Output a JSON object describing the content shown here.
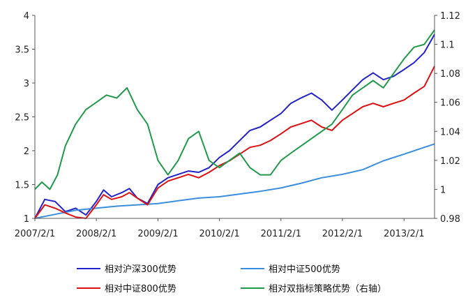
{
  "chart_data": {
    "type": "line",
    "x_ticks": [
      "2007/2/1",
      "2008/2/1",
      "2009/2/1",
      "2010/2/1",
      "2011/2/1",
      "2012/2/1",
      "2013/2/1"
    ],
    "left_axis": {
      "ylim": [
        1,
        4
      ],
      "ticks": [
        "1",
        "1.5",
        "2",
        "2.5",
        "3",
        "3.5",
        "4"
      ]
    },
    "right_axis": {
      "ylim": [
        0.98,
        1.12
      ],
      "ticks": [
        "0.98",
        "1",
        "1.02",
        "1.04",
        "1.06",
        "1.08",
        "1.1",
        "1.12"
      ]
    },
    "grid": false,
    "legend_position": "bottom",
    "series": [
      {
        "name": "相对沪深300优势",
        "axis": "left",
        "color": "#2222cc",
        "points": [
          [
            "2007/2/1",
            1.0
          ],
          [
            "2007/4/1",
            1.28
          ],
          [
            "2007/6/1",
            1.25
          ],
          [
            "2007/8/1",
            1.1
          ],
          [
            "2007/10/1",
            1.15
          ],
          [
            "2007/12/1",
            1.05
          ],
          [
            "2008/2/1",
            1.25
          ],
          [
            "2008/3/15",
            1.42
          ],
          [
            "2008/5/1",
            1.32
          ],
          [
            "2008/7/1",
            1.38
          ],
          [
            "2008/8/15",
            1.44
          ],
          [
            "2008/10/1",
            1.3
          ],
          [
            "2008/12/1",
            1.22
          ],
          [
            "2009/2/1",
            1.5
          ],
          [
            "2009/4/1",
            1.6
          ],
          [
            "2009/6/1",
            1.65
          ],
          [
            "2009/8/1",
            1.7
          ],
          [
            "2009/10/1",
            1.68
          ],
          [
            "2009/12/1",
            1.75
          ],
          [
            "2010/2/1",
            1.9
          ],
          [
            "2010/4/1",
            2.0
          ],
          [
            "2010/6/1",
            2.15
          ],
          [
            "2010/8/1",
            2.3
          ],
          [
            "2010/10/1",
            2.35
          ],
          [
            "2010/12/1",
            2.45
          ],
          [
            "2011/2/1",
            2.55
          ],
          [
            "2011/4/1",
            2.7
          ],
          [
            "2011/6/1",
            2.78
          ],
          [
            "2011/8/1",
            2.85
          ],
          [
            "2011/10/1",
            2.75
          ],
          [
            "2011/12/1",
            2.6
          ],
          [
            "2012/2/1",
            2.75
          ],
          [
            "2012/4/1",
            2.9
          ],
          [
            "2012/6/1",
            3.05
          ],
          [
            "2012/8/1",
            3.15
          ],
          [
            "2012/10/1",
            3.05
          ],
          [
            "2012/12/1",
            3.1
          ],
          [
            "2013/2/1",
            3.2
          ],
          [
            "2013/4/1",
            3.3
          ],
          [
            "2013/6/1",
            3.45
          ],
          [
            "2013/8/1",
            3.72
          ]
        ]
      },
      {
        "name": "相对中证500优势",
        "axis": "left",
        "color": "#3a8ee0",
        "points": [
          [
            "2007/2/1",
            1.0
          ],
          [
            "2007/6/1",
            1.06
          ],
          [
            "2007/10/1",
            1.12
          ],
          [
            "2008/2/1",
            1.15
          ],
          [
            "2008/6/1",
            1.18
          ],
          [
            "2008/10/1",
            1.2
          ],
          [
            "2009/2/1",
            1.22
          ],
          [
            "2009/6/1",
            1.26
          ],
          [
            "2009/10/1",
            1.3
          ],
          [
            "2010/2/1",
            1.32
          ],
          [
            "2010/6/1",
            1.36
          ],
          [
            "2010/10/1",
            1.4
          ],
          [
            "2011/2/1",
            1.45
          ],
          [
            "2011/6/1",
            1.52
          ],
          [
            "2011/10/1",
            1.6
          ],
          [
            "2012/2/1",
            1.65
          ],
          [
            "2012/6/1",
            1.72
          ],
          [
            "2012/10/1",
            1.85
          ],
          [
            "2013/2/1",
            1.95
          ],
          [
            "2013/6/1",
            2.05
          ],
          [
            "2013/8/1",
            2.1
          ]
        ]
      },
      {
        "name": "相对中证800优势",
        "axis": "left",
        "color": "#dd1111",
        "points": [
          [
            "2007/2/1",
            1.0
          ],
          [
            "2007/4/1",
            1.2
          ],
          [
            "2007/6/1",
            1.15
          ],
          [
            "2007/8/1",
            1.08
          ],
          [
            "2007/10/1",
            1.02
          ],
          [
            "2007/12/1",
            1.0
          ],
          [
            "2008/2/1",
            1.2
          ],
          [
            "2008/3/15",
            1.35
          ],
          [
            "2008/5/1",
            1.28
          ],
          [
            "2008/7/1",
            1.32
          ],
          [
            "2008/8/15",
            1.38
          ],
          [
            "2008/10/1",
            1.3
          ],
          [
            "2008/12/1",
            1.2
          ],
          [
            "2009/2/1",
            1.45
          ],
          [
            "2009/4/1",
            1.55
          ],
          [
            "2009/6/1",
            1.6
          ],
          [
            "2009/8/1",
            1.65
          ],
          [
            "2009/10/1",
            1.6
          ],
          [
            "2009/12/1",
            1.68
          ],
          [
            "2010/2/1",
            1.78
          ],
          [
            "2010/4/1",
            1.85
          ],
          [
            "2010/6/1",
            1.95
          ],
          [
            "2010/8/1",
            2.05
          ],
          [
            "2010/10/1",
            2.08
          ],
          [
            "2010/12/1",
            2.15
          ],
          [
            "2011/2/1",
            2.25
          ],
          [
            "2011/4/1",
            2.35
          ],
          [
            "2011/6/1",
            2.4
          ],
          [
            "2011/8/1",
            2.45
          ],
          [
            "2011/10/1",
            2.35
          ],
          [
            "2011/12/1",
            2.3
          ],
          [
            "2012/2/1",
            2.45
          ],
          [
            "2012/4/1",
            2.55
          ],
          [
            "2012/6/1",
            2.65
          ],
          [
            "2012/8/1",
            2.7
          ],
          [
            "2012/10/1",
            2.65
          ],
          [
            "2012/12/1",
            2.7
          ],
          [
            "2013/2/1",
            2.75
          ],
          [
            "2013/4/1",
            2.85
          ],
          [
            "2013/6/1",
            2.95
          ],
          [
            "2013/8/1",
            3.25
          ]
        ]
      },
      {
        "name": "相对双指标策略优势（右轴）",
        "axis": "right",
        "color": "#1f9a4a",
        "points": [
          [
            "2007/2/1",
            1.0
          ],
          [
            "2007/3/15",
            1.005
          ],
          [
            "2007/5/1",
            1.0
          ],
          [
            "2007/6/15",
            1.01
          ],
          [
            "2007/8/1",
            1.03
          ],
          [
            "2007/10/1",
            1.045
          ],
          [
            "2007/12/1",
            1.055
          ],
          [
            "2008/2/1",
            1.06
          ],
          [
            "2008/4/1",
            1.065
          ],
          [
            "2008/6/1",
            1.063
          ],
          [
            "2008/8/1",
            1.07
          ],
          [
            "2008/10/1",
            1.055
          ],
          [
            "2008/12/1",
            1.045
          ],
          [
            "2009/2/1",
            1.02
          ],
          [
            "2009/4/1",
            1.01
          ],
          [
            "2009/6/1",
            1.02
          ],
          [
            "2009/8/1",
            1.035
          ],
          [
            "2009/10/1",
            1.04
          ],
          [
            "2009/12/1",
            1.02
          ],
          [
            "2010/2/1",
            1.015
          ],
          [
            "2010/4/1",
            1.02
          ],
          [
            "2010/6/1",
            1.025
          ],
          [
            "2010/8/1",
            1.015
          ],
          [
            "2010/10/1",
            1.01
          ],
          [
            "2010/12/1",
            1.01
          ],
          [
            "2011/2/1",
            1.02
          ],
          [
            "2011/4/1",
            1.025
          ],
          [
            "2011/6/1",
            1.03
          ],
          [
            "2011/8/1",
            1.035
          ],
          [
            "2011/10/1",
            1.04
          ],
          [
            "2011/12/1",
            1.045
          ],
          [
            "2012/2/1",
            1.055
          ],
          [
            "2012/4/1",
            1.065
          ],
          [
            "2012/6/1",
            1.07
          ],
          [
            "2012/8/1",
            1.075
          ],
          [
            "2012/10/1",
            1.07
          ],
          [
            "2012/12/1",
            1.08
          ],
          [
            "2013/2/1",
            1.09
          ],
          [
            "2013/4/1",
            1.098
          ],
          [
            "2013/6/1",
            1.1
          ],
          [
            "2013/8/1",
            1.11
          ]
        ]
      }
    ]
  }
}
